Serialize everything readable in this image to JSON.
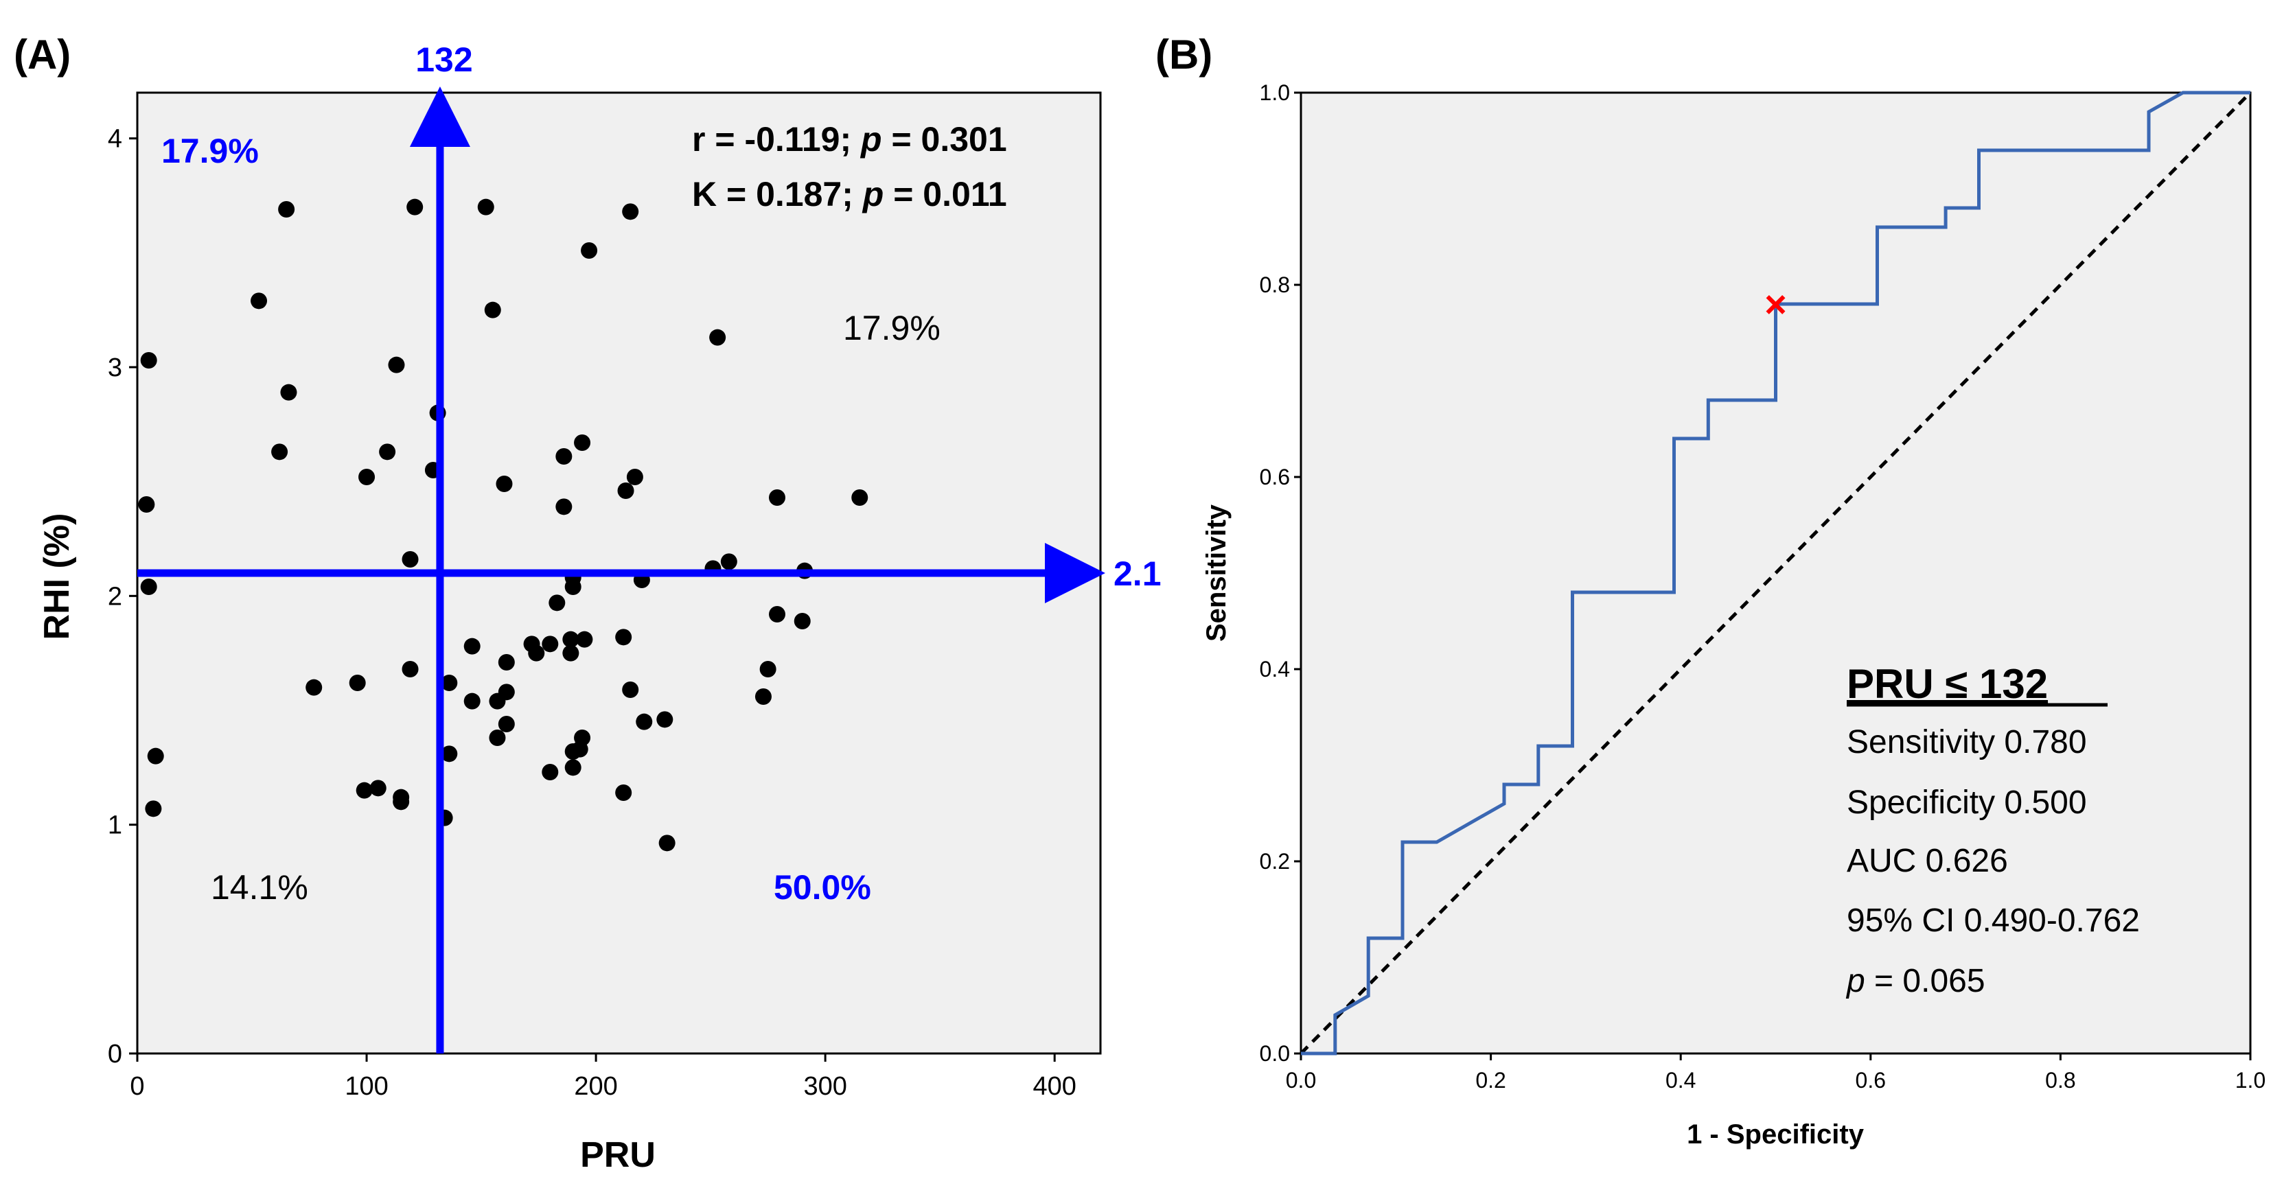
{
  "chart_data": [
    {
      "panel_label": "(A)",
      "type": "scatter",
      "xlabel": "PRU",
      "ylabel": "RHI (%)",
      "xlim": [
        0,
        420
      ],
      "ylim": [
        0,
        4.2
      ],
      "xticks": [
        0,
        100,
        200,
        300,
        400
      ],
      "yticks": [
        0,
        1,
        2,
        3,
        4
      ],
      "xtick_labels": [
        "0",
        "100",
        "200",
        "300",
        "400"
      ],
      "ytick_labels": [
        "0",
        "1",
        "2",
        "3",
        "4"
      ],
      "cutoff_x": {
        "value": 132,
        "label": "132"
      },
      "cutoff_y": {
        "value": 2.1,
        "label": "2.1"
      },
      "stats": {
        "r_label": "r = -0.119;",
        "r_p_label": "p",
        "r_p_value": " = 0.301",
        "k_label": "K = 0.187;",
        "k_p_label": "p",
        "k_p_value": " = 0.011"
      },
      "quadrants": [
        {
          "name": "upper-left",
          "label": "17.9%",
          "color": "#0000ff"
        },
        {
          "name": "upper-right",
          "label": "17.9%",
          "color": "#000000"
        },
        {
          "name": "lower-left",
          "label": "14.1%",
          "color": "#000000"
        },
        {
          "name": "lower-right",
          "label": "50.0%",
          "color": "#0000ff"
        }
      ],
      "points": [
        [
          5,
          3.03
        ],
        [
          4,
          2.4
        ],
        [
          5,
          2.04
        ],
        [
          8,
          1.3
        ],
        [
          7,
          1.07
        ],
        [
          53,
          3.29
        ],
        [
          62,
          2.63
        ],
        [
          65,
          3.69
        ],
        [
          66,
          2.89
        ],
        [
          77,
          1.6
        ],
        [
          96,
          1.62
        ],
        [
          100,
          2.52
        ],
        [
          99,
          1.15
        ],
        [
          105,
          1.16
        ],
        [
          109,
          2.63
        ],
        [
          113,
          3.01
        ],
        [
          115,
          1.12
        ],
        [
          115,
          1.1
        ],
        [
          119,
          2.16
        ],
        [
          119,
          1.68
        ],
        [
          121,
          3.7
        ],
        [
          129,
          2.55
        ],
        [
          131,
          2.8
        ],
        [
          134,
          1.03
        ],
        [
          136,
          1.62
        ],
        [
          136,
          1.31
        ],
        [
          146,
          1.78
        ],
        [
          146,
          1.54
        ],
        [
          152,
          3.7
        ],
        [
          155,
          3.25
        ],
        [
          157,
          1.38
        ],
        [
          157,
          1.54
        ],
        [
          160,
          2.49
        ],
        [
          161,
          1.58
        ],
        [
          161,
          1.71
        ],
        [
          161,
          1.44
        ],
        [
          172,
          1.79
        ],
        [
          174,
          1.75
        ],
        [
          180,
          1.23
        ],
        [
          180,
          1.79
        ],
        [
          183,
          1.97
        ],
        [
          186,
          2.61
        ],
        [
          186,
          2.39
        ],
        [
          189,
          1.81
        ],
        [
          189,
          1.75
        ],
        [
          190,
          2.08
        ],
        [
          190,
          2.04
        ],
        [
          190,
          1.32
        ],
        [
          190,
          1.25
        ],
        [
          193,
          1.33
        ],
        [
          194,
          1.38
        ],
        [
          194,
          2.67
        ],
        [
          195,
          1.81
        ],
        [
          197,
          3.51
        ],
        [
          212,
          1.82
        ],
        [
          212,
          1.14
        ],
        [
          213,
          2.46
        ],
        [
          215,
          3.68
        ],
        [
          215,
          1.59
        ],
        [
          217,
          2.52
        ],
        [
          220,
          2.07
        ],
        [
          221,
          1.45
        ],
        [
          230,
          1.46
        ],
        [
          231,
          0.92
        ],
        [
          251,
          2.12
        ],
        [
          253,
          3.13
        ],
        [
          258,
          2.15
        ],
        [
          273,
          1.56
        ],
        [
          275,
          1.68
        ],
        [
          279,
          2.43
        ],
        [
          279,
          1.92
        ],
        [
          290,
          1.89
        ],
        [
          291,
          2.11
        ],
        [
          315,
          2.43
        ]
      ],
      "colors": {
        "cutoff": "#0000ff",
        "point": "#000000",
        "background": "#f0f0f0"
      }
    },
    {
      "panel_label": "(B)",
      "type": "line",
      "title": "",
      "xlabel": "1 - Specificity",
      "ylabel": "Sensitivity",
      "xlim": [
        0,
        1
      ],
      "ylim": [
        0,
        1
      ],
      "xticks": [
        0,
        0.2,
        0.4,
        0.6,
        0.8,
        1.0
      ],
      "yticks": [
        0,
        0.2,
        0.4,
        0.6,
        0.8,
        1.0
      ],
      "xtick_labels": [
        "0.0",
        "0.2",
        "0.4",
        "0.6",
        "0.8",
        "1.0"
      ],
      "ytick_labels": [
        "0.0",
        "0.2",
        "0.4",
        "0.6",
        "0.8",
        "1.0"
      ],
      "series": [
        {
          "name": "ROC",
          "color": "#3a67b3",
          "x": [
            0,
            0.036,
            0.036,
            0.071,
            0.071,
            0.107,
            0.107,
            0.143,
            0.214,
            0.214,
            0.25,
            0.25,
            0.286,
            0.286,
            0.393,
            0.393,
            0.429,
            0.429,
            0.5,
            0.5,
            0.607,
            0.607,
            0.679,
            0.679,
            0.714,
            0.714,
            0.893,
            0.893,
            0.929,
            1.0
          ],
          "y": [
            0,
            0,
            0.04,
            0.06,
            0.12,
            0.12,
            0.22,
            0.22,
            0.26,
            0.28,
            0.28,
            0.32,
            0.32,
            0.48,
            0.48,
            0.64,
            0.64,
            0.68,
            0.68,
            0.78,
            0.78,
            0.86,
            0.86,
            0.88,
            0.88,
            0.94,
            0.94,
            0.98,
            1.0,
            1.0
          ]
        },
        {
          "name": "Reference",
          "color": "#000000",
          "x": [
            0,
            1
          ],
          "y": [
            0,
            1
          ]
        }
      ],
      "marker": {
        "x": 0.5,
        "y": 0.78,
        "symbol": "×",
        "color": "#ff0000"
      },
      "annotation": {
        "title": "PRU ≤ 132",
        "sensitivity": "Sensitivity 0.780",
        "specificity": "Specificity 0.500",
        "auc": "AUC 0.626",
        "ci": "95% CI 0.490-0.762",
        "p_label": "p",
        "p_value": " = 0.065"
      },
      "colors": {
        "background": "#f0f0f0"
      }
    }
  ]
}
